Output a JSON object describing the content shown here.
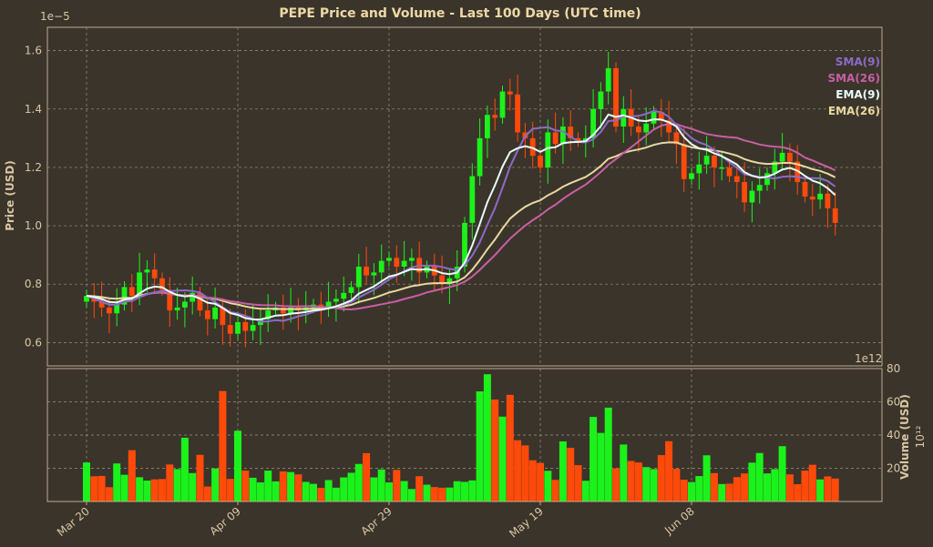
{
  "chart_data": {
    "type": "candlestick",
    "title": "PEPE Price and Volume - Last 100 Days (UTC time)",
    "colors": {
      "background": "#3b342b",
      "up": "#1bf21b",
      "down": "#ff4a0a",
      "text": "#d9c8a3",
      "title": "#eed9a6",
      "grid": "#a1927b",
      "sma9": "#8c6bc8",
      "sma26": "#c85fa5",
      "ema9": "#e6fff8",
      "ema26": "#e8d9a0"
    },
    "price_panel": {
      "ylabel": "Price (USD)",
      "scale_label": "1e−5",
      "ylim": [
        0.52,
        1.68
      ],
      "yticks": [
        {
          "v": 0.6,
          "label": "0.6"
        },
        {
          "v": 0.8,
          "label": "0.8"
        },
        {
          "v": 1.0,
          "label": "1.0"
        },
        {
          "v": 1.2,
          "label": "1.2"
        },
        {
          "v": 1.4,
          "label": "1.4"
        },
        {
          "v": 1.6,
          "label": "1.6"
        }
      ],
      "grid": true,
      "legend_position": "top-right",
      "legend": [
        {
          "key": "sma9",
          "label": "SMA(9)"
        },
        {
          "key": "sma26",
          "label": "SMA(26)"
        },
        {
          "key": "ema9",
          "label": "EMA(9)"
        },
        {
          "key": "ema26",
          "label": "EMA(26)"
        }
      ]
    },
    "volume_panel": {
      "ylabel": "Volume (USD)",
      "scale_label": "1e12",
      "scale_side_label": "10¹²",
      "ylim": [
        0,
        80
      ],
      "yticks": [
        {
          "v": 20,
          "label": "20"
        },
        {
          "v": 40,
          "label": "40"
        },
        {
          "v": 60,
          "label": "60"
        },
        {
          "v": 80,
          "label": "80"
        }
      ],
      "grid": true
    },
    "x_ticks": [
      {
        "i": 0,
        "label": "Mar 20"
      },
      {
        "i": 20,
        "label": "Apr 09"
      },
      {
        "i": 40,
        "label": "Apr 29"
      },
      {
        "i": 60,
        "label": "May 19"
      },
      {
        "i": 80,
        "label": "Jun 08"
      }
    ],
    "close": [
      0.76,
      0.74,
      0.72,
      0.7,
      0.73,
      0.79,
      0.76,
      0.84,
      0.85,
      0.82,
      0.78,
      0.71,
      0.72,
      0.74,
      0.77,
      0.71,
      0.68,
      0.72,
      0.66,
      0.63,
      0.67,
      0.64,
      0.66,
      0.68,
      0.71,
      0.72,
      0.7,
      0.72,
      0.71,
      0.72,
      0.73,
      0.72,
      0.74,
      0.75,
      0.77,
      0.79,
      0.86,
      0.83,
      0.84,
      0.88,
      0.89,
      0.86,
      0.88,
      0.89,
      0.84,
      0.86,
      0.83,
      0.8,
      0.82,
      0.86,
      1.01,
      1.17,
      1.3,
      1.38,
      1.37,
      1.46,
      1.45,
      1.32,
      1.3,
      1.24,
      1.2,
      1.32,
      1.28,
      1.34,
      1.3,
      1.29,
      1.3,
      1.4,
      1.46,
      1.54,
      1.34,
      1.4,
      1.34,
      1.32,
      1.35,
      1.39,
      1.36,
      1.32,
      1.28,
      1.16,
      1.18,
      1.21,
      1.24,
      1.2,
      1.2,
      1.17,
      1.15,
      1.08,
      1.12,
      1.14,
      1.18,
      1.22,
      1.25,
      1.22,
      1.15,
      1.1,
      1.09,
      1.11,
      1.06,
      1.01
    ],
    "volume": [
      23.5,
      15.2,
      15.4,
      8.6,
      22.9,
      16.1,
      30.9,
      14.6,
      12.6,
      13.3,
      13.5,
      22.3,
      19.5,
      38.4,
      17.1,
      28.1,
      9.0,
      19.9,
      66.5,
      13.6,
      42.6,
      18.6,
      14.3,
      11.5,
      18.6,
      12.1,
      18.1,
      17.7,
      16.3,
      11.8,
      10.6,
      8.2,
      12.9,
      8.3,
      14.5,
      17.3,
      22.6,
      29.1,
      14.5,
      19.3,
      11.5,
      19.0,
      12.3,
      7.5,
      15.2,
      10.1,
      8.7,
      8.3,
      8.4,
      12.2,
      11.8,
      12.7,
      66.3,
      76.6,
      61.4,
      51.1,
      64.2,
      36.9,
      33.8,
      24.8,
      23.2,
      18.5,
      13.0,
      36.2,
      32.3,
      21.9,
      12.5,
      50.9,
      41.3,
      56.5,
      20.0,
      34.3,
      24.4,
      23.5,
      20.7,
      19.5,
      27.9,
      36.3,
      19.7,
      13.1,
      11.7,
      15.3,
      27.8,
      17.1,
      10.5,
      10.7,
      14.7,
      16.9,
      23.4,
      29.2,
      16.9,
      19.5,
      33.3,
      16.3,
      10.4,
      18.6,
      22.1,
      13.3,
      15.1,
      13.8
    ]
  }
}
